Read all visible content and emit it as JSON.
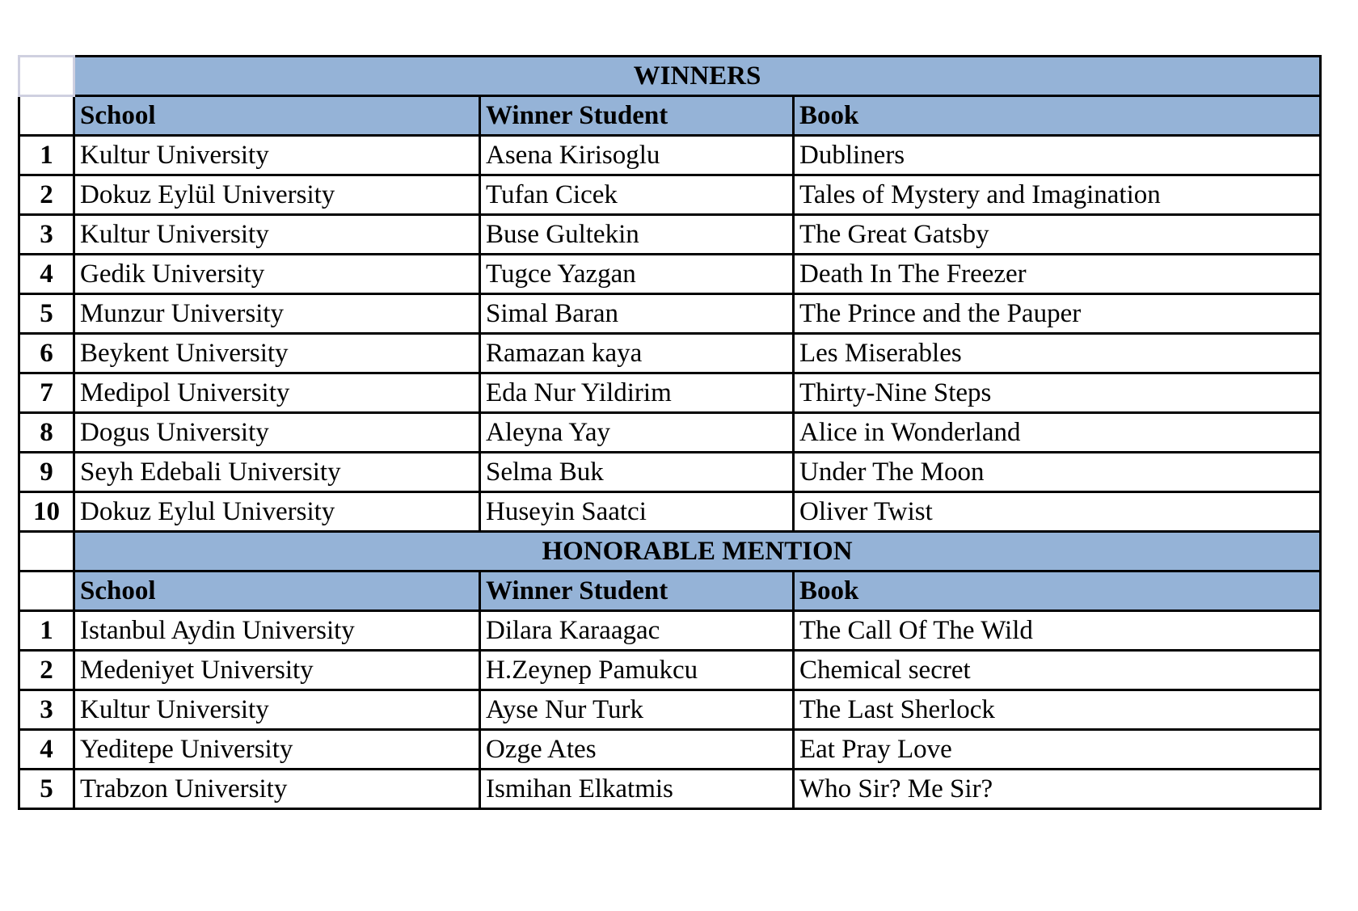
{
  "colors": {
    "header_fill": "#95b3d7",
    "border": "#000000"
  },
  "winners": {
    "title": "WINNERS",
    "headers": [
      "School",
      "Winner Student",
      "Book"
    ],
    "rows": [
      {
        "num": "1",
        "school": "Kultur University",
        "student": "Asena Kirisoglu",
        "book": "Dubliners"
      },
      {
        "num": "2",
        "school": "Dokuz Eylül University",
        "student": "Tufan Cicek",
        "book": "Tales of Mystery and Imagination"
      },
      {
        "num": "3",
        "school": "Kultur University",
        "student": "Buse Gultekin",
        "book": "The Great Gatsby"
      },
      {
        "num": "4",
        "school": "Gedik University",
        "student": "Tugce Yazgan",
        "book": "Death In The Freezer"
      },
      {
        "num": "5",
        "school": "Munzur University",
        "student": "Simal Baran",
        "book": "The Prince and the Pauper"
      },
      {
        "num": "6",
        "school": "Beykent University",
        "student": "Ramazan kaya",
        "book": "Les Miserables"
      },
      {
        "num": "7",
        "school": "Medipol University",
        "student": "Eda Nur Yildirim",
        "book": "Thirty-Nine Steps"
      },
      {
        "num": "8",
        "school": "Dogus University",
        "student": "Aleyna Yay",
        "book": "Alice in Wonderland"
      },
      {
        "num": "9",
        "school": "Seyh Edebali University",
        "student": "Selma Buk",
        "book": "Under The Moon"
      },
      {
        "num": "10",
        "school": "Dokuz Eylul University",
        "student": "Huseyin Saatci",
        "book": "Oliver Twist"
      }
    ]
  },
  "honorable": {
    "title": "HONORABLE MENTION",
    "headers": [
      "School",
      "Winner Student",
      "Book"
    ],
    "rows": [
      {
        "num": "1",
        "school": "Istanbul Aydin University",
        "student": "Dilara Karaagac",
        "book": "The Call Of The Wild"
      },
      {
        "num": "2",
        "school": "Medeniyet University",
        "student": "H.Zeynep Pamukcu",
        "book": "Chemical secret"
      },
      {
        "num": "3",
        "school": "Kultur University",
        "student": "Ayse Nur Turk",
        "book": "The Last Sherlock"
      },
      {
        "num": "4",
        "school": "Yeditepe University",
        "student": "Ozge Ates",
        "book": "Eat Pray Love"
      },
      {
        "num": "5",
        "school": "Trabzon University",
        "student": "Ismihan Elkatmis",
        "book": "Who Sir? Me Sir?"
      }
    ]
  }
}
